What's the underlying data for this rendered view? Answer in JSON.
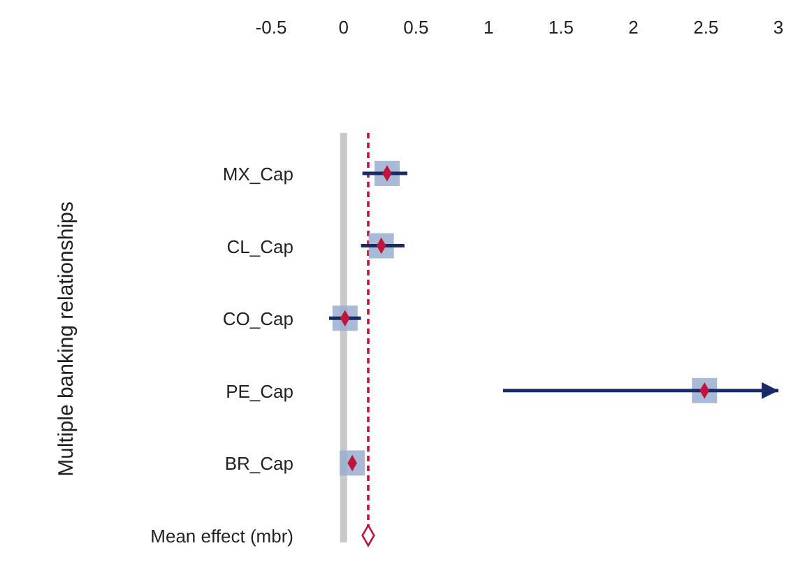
{
  "chart_data": {
    "type": "scatter",
    "ylabel": "Multiple banking relationships",
    "categories": [
      "MX_Cap",
      "CL_Cap",
      "CO_Cap",
      "PE_Cap",
      "BR_Cap",
      "Mean effect (mbr)"
    ],
    "xlim": [
      -0.5,
      3
    ],
    "xticks": [
      -0.5,
      0,
      0.5,
      1,
      1.5,
      2,
      2.5,
      3
    ],
    "series": [
      {
        "color": "#c0143c",
        "marker": "diamond",
        "values": [
          0.3,
          0.26,
          0.01,
          2.49,
          0.06,
          null
        ],
        "errors": [
          [
            0.13,
            0.44
          ],
          [
            0.12,
            0.42
          ],
          [
            -0.1,
            0.12
          ],
          [
            1.1,
            3
          ],
          null,
          null
        ]
      },
      {
        "color": "#c0143c",
        "marker": "diamond",
        "values": [
          null,
          null,
          null,
          null,
          null,
          0.17
        ]
      }
    ],
    "ref_lines": [
      {
        "axis": "x",
        "value": 0,
        "color": "#c8c8c8",
        "line_style": "solid"
      },
      {
        "axis": "x",
        "value": 0.17,
        "color": "#c0143c",
        "line_style": "dashed"
      }
    ],
    "orientation": "horizontal",
    "grid": false
  }
}
